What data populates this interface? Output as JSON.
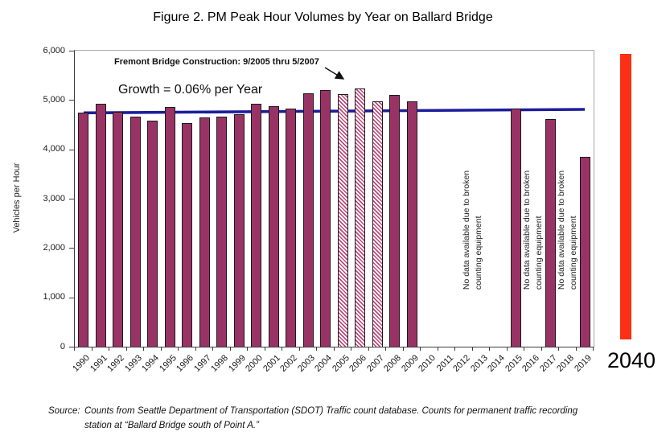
{
  "title": "Figure 2. PM Peak Hour Volumes by Year on Ballard Bridge",
  "chart_data": {
    "type": "bar",
    "title": "Figure 2. PM Peak Hour Volumes by Year on Ballard Bridge",
    "xlabel": "",
    "ylabel": "Vehicles per Hour",
    "ylim": [
      0,
      6000
    ],
    "ytick_step": 1000,
    "ytick_labels": [
      "0",
      "1,000",
      "2,000",
      "3,000",
      "4,000",
      "5,000",
      "6,000"
    ],
    "grid": false,
    "legend": "none",
    "categories": [
      "1990",
      "1991",
      "1992",
      "1993",
      "1994",
      "1995",
      "1996",
      "1997",
      "1998",
      "1999",
      "2000",
      "2001",
      "2002",
      "2003",
      "2004",
      "2005",
      "2006",
      "2007",
      "2008",
      "2009",
      "2010",
      "2011",
      "2012",
      "2013",
      "2014",
      "2015",
      "2016",
      "2017",
      "2018",
      "2019"
    ],
    "values": [
      4750,
      4930,
      4760,
      4670,
      4590,
      4860,
      4530,
      4650,
      4660,
      4720,
      4920,
      4870,
      4820,
      5130,
      5200,
      5120,
      5240,
      4980,
      5100,
      4970,
      null,
      null,
      null,
      null,
      null,
      4820,
      null,
      4620,
      null,
      3850
    ],
    "hatched_categories": [
      "2005",
      "2006",
      "2007"
    ],
    "trend_line": {
      "label": "Growth = 0.06% per Year",
      "start_value": 4740,
      "end_value": 4810
    },
    "annotation": "Fremont Bridge Construction: 9/2005 thru 5/2007",
    "no_data_text_lines": [
      "No data available due to broken",
      "counting equipment"
    ],
    "no_data_positions": [
      [
        "2012",
        "2013"
      ],
      [
        "2016"
      ],
      [
        "2018"
      ]
    ],
    "projection": {
      "label": "2040"
    }
  },
  "source": {
    "label": "Source:",
    "line1": "Counts from Seattle Department of Transportation (SDOT) Traffic count database. Counts for permanent traffic recording",
    "line2": "station at “Ballard Bridge south of Point A.”"
  },
  "colors": {
    "bar": "#993366",
    "bar_border": "#1a1a1a",
    "hatch_stripe": "#bf4a7d",
    "trend_line": "#1c1c9c",
    "projection_bar": "#fb2f15"
  }
}
